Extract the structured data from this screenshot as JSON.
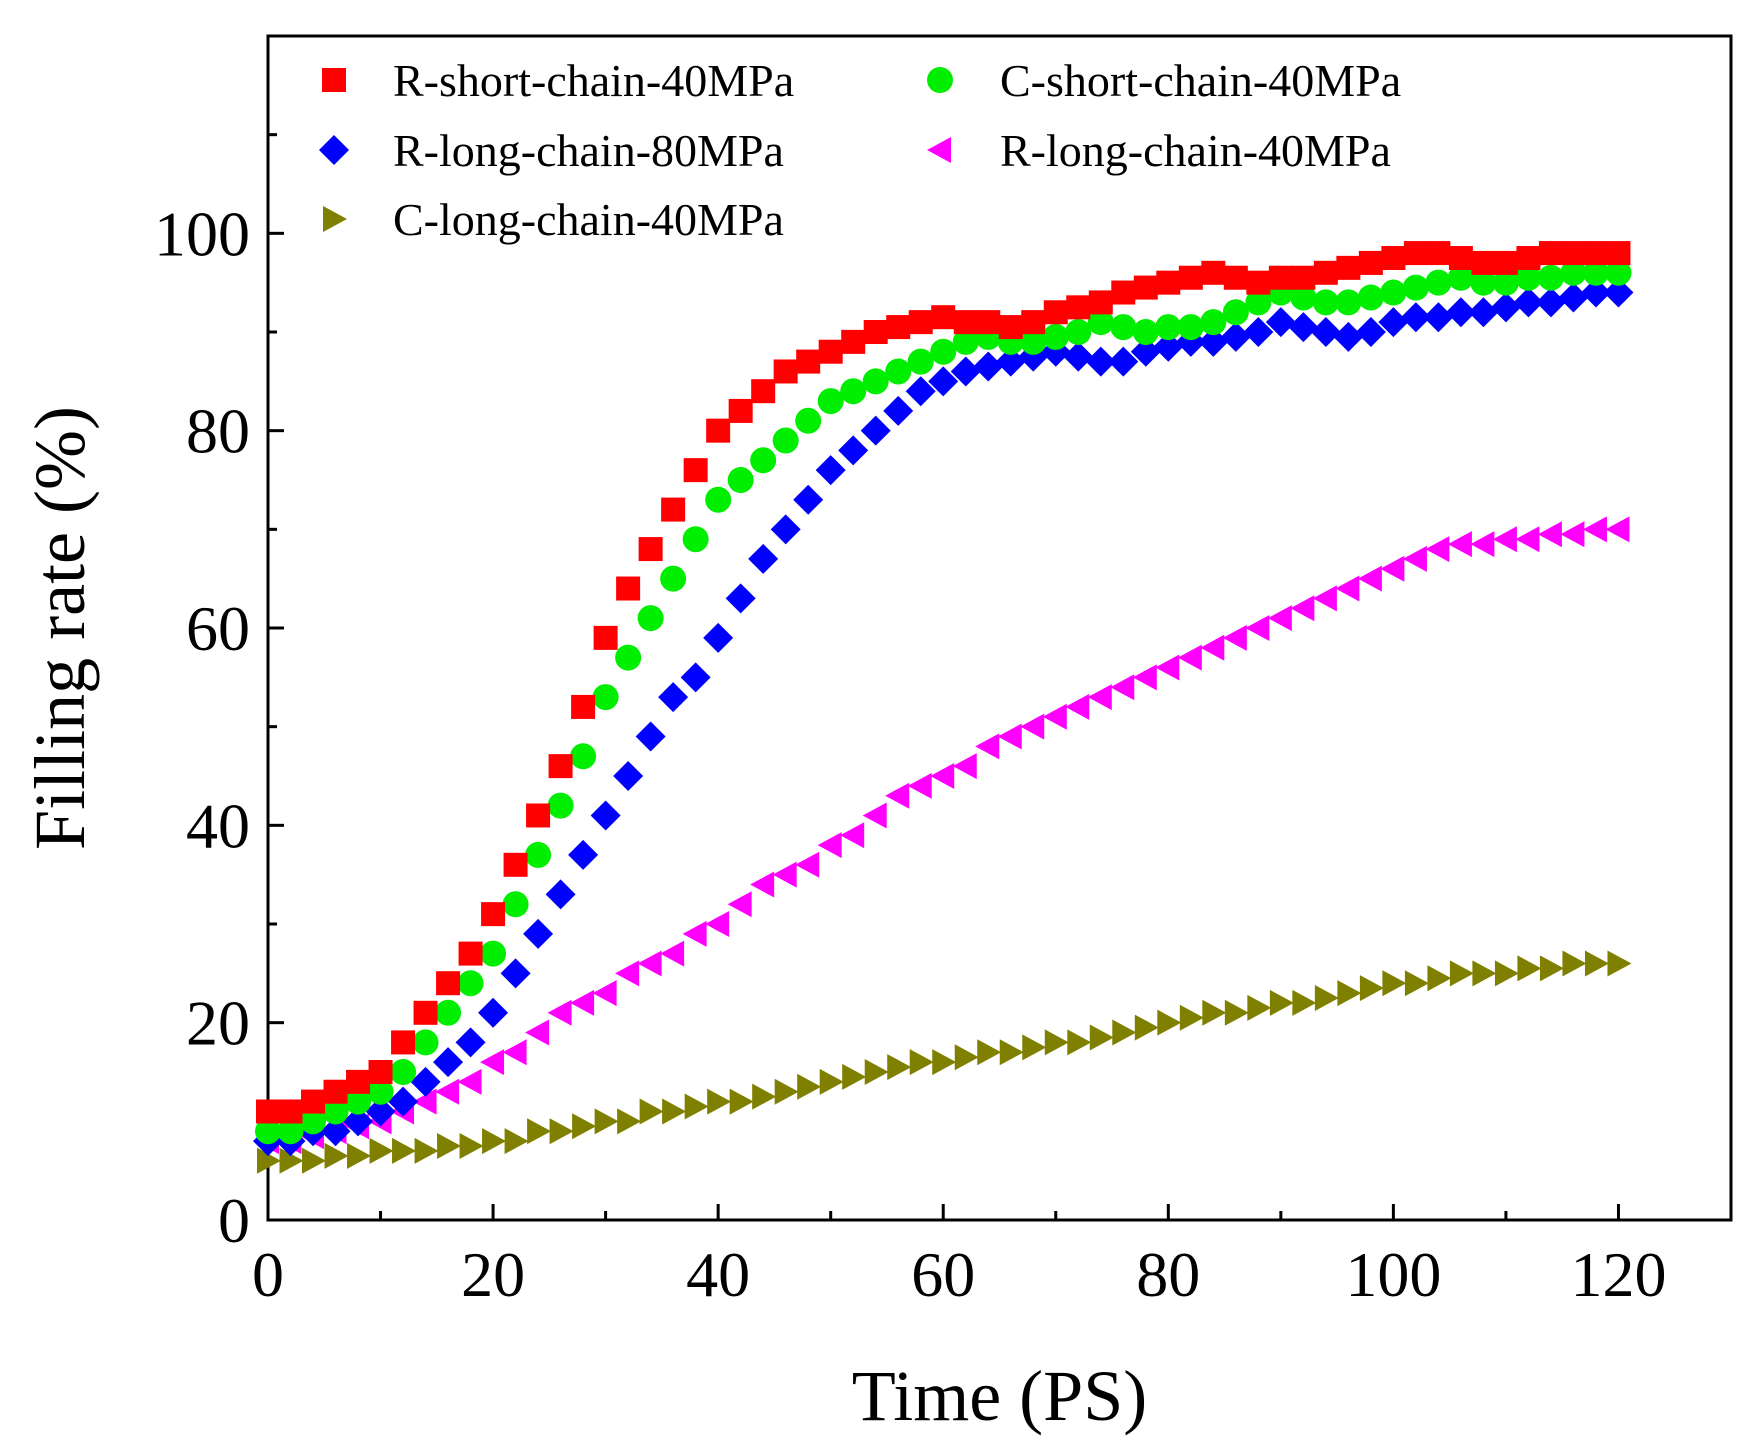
{
  "chart_data": {
    "type": "scatter",
    "title": "",
    "xlabel": "Time (PS)",
    "ylabel": "Filling rate (%)",
    "xlim": [
      0,
      130
    ],
    "ylim": [
      0,
      120
    ],
    "x_ticks": [
      0,
      20,
      40,
      60,
      80,
      100,
      120
    ],
    "x_tick_labels": [
      "0",
      "20",
      "40",
      "60",
      "80",
      "100",
      "120"
    ],
    "y_ticks": [
      0,
      20,
      40,
      60,
      80,
      100
    ],
    "y_tick_labels": [
      "0",
      "20",
      "40",
      "60",
      "80",
      "100"
    ],
    "grid": false,
    "legend_position": "top-left",
    "x": [
      0,
      2,
      4,
      6,
      8,
      10,
      12,
      14,
      16,
      18,
      20,
      22,
      24,
      26,
      28,
      30,
      32,
      34,
      36,
      38,
      40,
      42,
      44,
      46,
      48,
      50,
      52,
      54,
      56,
      58,
      60,
      62,
      64,
      66,
      68,
      70,
      72,
      74,
      76,
      78,
      80,
      82,
      84,
      86,
      88,
      90,
      92,
      94,
      96,
      98,
      100,
      102,
      104,
      106,
      108,
      110,
      112,
      114,
      116,
      118,
      120
    ],
    "series": [
      {
        "name": "R-short-chain-40MPa",
        "marker": "square",
        "color": "#ff0000",
        "values": [
          11,
          11,
          12,
          13,
          14,
          15,
          18,
          21,
          24,
          27,
          31,
          36,
          41,
          46,
          52,
          59,
          64,
          68,
          72,
          76,
          80,
          82,
          84,
          86,
          87,
          88,
          89,
          90,
          90.5,
          91,
          91.5,
          91,
          91,
          90.5,
          91,
          92,
          92.5,
          93,
          94,
          94.5,
          95,
          95.5,
          96,
          95.5,
          95,
          95.5,
          95.5,
          96,
          96.5,
          97,
          97.5,
          98,
          98,
          97.5,
          97,
          97,
          97.5,
          98,
          98,
          98,
          98
        ]
      },
      {
        "name": "C-short-chain-40MPa",
        "marker": "circle",
        "color": "#00ee00",
        "values": [
          9,
          9,
          10,
          11,
          12,
          13,
          15,
          18,
          21,
          24,
          27,
          32,
          37,
          42,
          47,
          53,
          57,
          61,
          65,
          69,
          73,
          75,
          77,
          79,
          81,
          83,
          84,
          85,
          86,
          87,
          88,
          89,
          89.5,
          89,
          89,
          89.5,
          90,
          91,
          90.5,
          90,
          90.5,
          90.5,
          91,
          92,
          93,
          94,
          93.5,
          93,
          93,
          93.5,
          94,
          94.5,
          95,
          95.5,
          95,
          95,
          95.5,
          95.5,
          96,
          96,
          96
        ]
      },
      {
        "name": "R-long-chain-80MPa",
        "marker": "diamond",
        "color": "#0000ff",
        "values": [
          8,
          8,
          9,
          9,
          10,
          11,
          12,
          14,
          16,
          18,
          21,
          25,
          29,
          33,
          37,
          41,
          45,
          49,
          53,
          55,
          59,
          63,
          67,
          70,
          73,
          76,
          78,
          80,
          82,
          84,
          85,
          86,
          86.5,
          87,
          87.5,
          88,
          87.5,
          87,
          87,
          88,
          88.5,
          89,
          89,
          89.5,
          90,
          91,
          90.5,
          90,
          89.5,
          90,
          91,
          91.5,
          91.5,
          92,
          92,
          92.5,
          93,
          93,
          93.5,
          94,
          94
        ]
      },
      {
        "name": "R-long-chain-40MPa",
        "marker": "triangle-left",
        "color": "#ff00ff",
        "values": [
          8,
          8,
          8.5,
          9,
          9.5,
          10,
          11,
          12,
          13,
          14,
          16,
          17,
          19,
          21,
          22,
          23,
          25,
          26,
          27,
          29,
          30,
          32,
          34,
          35,
          36,
          38,
          39,
          41,
          43,
          44,
          45,
          46,
          48,
          49,
          50,
          51,
          52,
          53,
          54,
          55,
          56,
          57,
          58,
          59,
          60,
          61,
          62,
          63,
          64,
          65,
          66,
          67,
          68,
          68.5,
          68.5,
          69,
          69,
          69.5,
          69.5,
          70,
          70
        ]
      },
      {
        "name": "C-long-chain-40MPa",
        "marker": "triangle-right",
        "color": "#808000",
        "values": [
          6,
          6,
          6,
          6.5,
          6.5,
          7,
          7,
          7,
          7.5,
          7.5,
          8,
          8,
          9,
          9,
          9.5,
          10,
          10,
          11,
          11,
          11.5,
          12,
          12,
          12.5,
          13,
          13.5,
          14,
          14.5,
          15,
          15.5,
          16,
          16,
          16.5,
          17,
          17,
          17.5,
          18,
          18,
          18.5,
          19,
          19.5,
          20,
          20.5,
          21,
          21,
          21.5,
          22,
          22,
          22.5,
          23,
          23.5,
          24,
          24,
          24.5,
          25,
          25,
          25,
          25.5,
          25.5,
          26,
          26,
          26
        ]
      }
    ]
  }
}
